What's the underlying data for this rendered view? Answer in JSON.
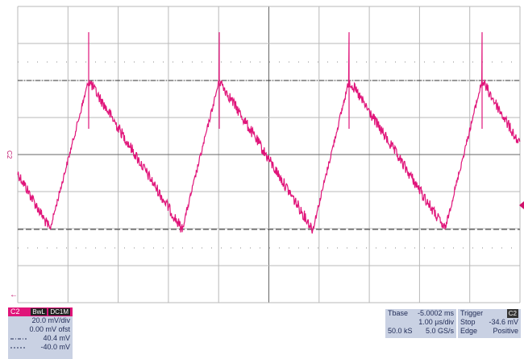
{
  "channel": {
    "label": "C2",
    "bandwidth": "BwL",
    "coupling": "DC1M",
    "scale": "20.0 mV/div",
    "offset": "0.00 mV ofst",
    "cursors": [
      "40.4 mV",
      "-40.0 mV"
    ]
  },
  "timebase": {
    "label": "Tbase",
    "delay": "-5.0002 ms",
    "scale": "1.00 µs/div",
    "samples": "50.0 kS",
    "rate": "5.0 GS/s"
  },
  "trigger": {
    "label": "Trigger",
    "source": "C2",
    "mode": "Stop",
    "level": "-34.6 mV",
    "type": "Edge",
    "slope": "Positive"
  }
}
